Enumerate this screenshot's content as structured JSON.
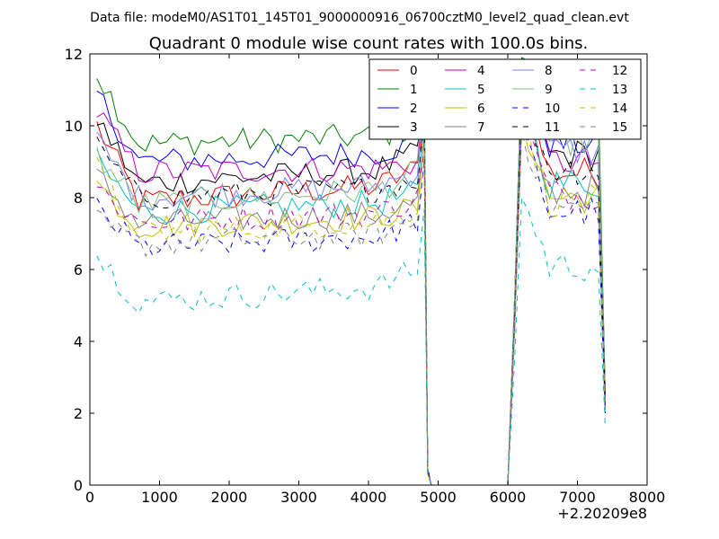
{
  "figure": {
    "suptitle": "Data file: modeM0/AS1T01_145T01_9000000916_06700cztM0_level2_quad_clean.evt"
  },
  "chart_data": {
    "type": "line",
    "title": "Quadrant 0 module wise count rates with 100.0s bins.",
    "xlabel": "",
    "ylabel": "",
    "x_offset_label": "+2.20209e8",
    "xlim": [
      0,
      8000
    ],
    "ylim": [
      0,
      12
    ],
    "xticks": [
      0,
      1000,
      2000,
      3000,
      4000,
      5000,
      6000,
      7000,
      8000
    ],
    "yticks": [
      0,
      2,
      4,
      6,
      8,
      10,
      12
    ],
    "grid": false,
    "legend_placement": "top-right",
    "legend_columns": 4,
    "x": {
      "segment1": {
        "start": 100,
        "step": 100,
        "count": 48
      },
      "gap": [
        4900,
        5000,
        5100,
        5200,
        5300,
        5400,
        5500,
        5600,
        5700,
        5800,
        5900,
        6000
      ],
      "segment2": {
        "start": 6100,
        "step": 100,
        "count": 14
      }
    },
    "series": [
      {
        "name": "0",
        "color": "#ff0000",
        "dashed": false,
        "seg1_start": 10.0,
        "seg1_mean": 7.9,
        "seg1_end": 8.9,
        "seg1_peak": 10.2,
        "seg2_peak": 11.0,
        "seg2_mean": 8.7,
        "seg2_last": 2.5
      },
      {
        "name": "1",
        "color": "#008000",
        "dashed": false,
        "seg1_start": 11.5,
        "seg1_mean": 9.5,
        "seg1_end": 10.0,
        "seg1_peak": 11.1,
        "seg2_peak": 11.9,
        "seg2_mean": 10.2,
        "seg2_last": 2.5
      },
      {
        "name": "2",
        "color": "#0000ff",
        "dashed": false,
        "seg1_start": 10.9,
        "seg1_mean": 9.0,
        "seg1_end": 9.6,
        "seg1_peak": 10.7,
        "seg2_peak": 11.7,
        "seg2_mean": 9.5,
        "seg2_last": 2.4
      },
      {
        "name": "3",
        "color": "#000000",
        "dashed": false,
        "seg1_start": 10.2,
        "seg1_mean": 8.4,
        "seg1_end": 9.3,
        "seg1_peak": 10.5,
        "seg2_peak": 11.2,
        "seg2_mean": 9.2,
        "seg2_last": 2.3
      },
      {
        "name": "4",
        "color": "#bf00bf",
        "dashed": false,
        "seg1_start": 10.4,
        "seg1_mean": 8.7,
        "seg1_end": 9.0,
        "seg1_peak": 10.4,
        "seg2_peak": 11.0,
        "seg2_mean": 9.0,
        "seg2_last": 2.4
      },
      {
        "name": "5",
        "color": "#00bfbf",
        "dashed": false,
        "seg1_start": 9.0,
        "seg1_mean": 7.6,
        "seg1_end": 8.2,
        "seg1_peak": 9.8,
        "seg2_peak": 10.6,
        "seg2_mean": 8.4,
        "seg2_last": 2.2
      },
      {
        "name": "6",
        "color": "#bfbf00",
        "dashed": false,
        "seg1_start": 8.4,
        "seg1_mean": 7.2,
        "seg1_end": 7.8,
        "seg1_peak": 9.4,
        "seg2_peak": 10.2,
        "seg2_mean": 8.0,
        "seg2_last": 2.1
      },
      {
        "name": "7",
        "color": "#808080",
        "dashed": false,
        "seg1_start": 8.6,
        "seg1_mean": 7.3,
        "seg1_end": 7.9,
        "seg1_peak": 9.5,
        "seg2_peak": 10.4,
        "seg2_mean": 8.2,
        "seg2_last": 2.2
      },
      {
        "name": "8",
        "color": "#7f7fff",
        "dashed": false,
        "seg1_start": 9.6,
        "seg1_mean": 8.0,
        "seg1_end": 8.8,
        "seg1_peak": 10.8,
        "seg2_peak": 11.7,
        "seg2_mean": 9.3,
        "seg2_last": 2.3
      },
      {
        "name": "9",
        "color": "#7fbf7f",
        "dashed": false,
        "seg1_start": 9.2,
        "seg1_mean": 7.8,
        "seg1_end": 8.8,
        "seg1_peak": 11.2,
        "seg2_peak": 11.8,
        "seg2_mean": 9.6,
        "seg2_last": 2.4
      },
      {
        "name": "10",
        "color": "#0000ff",
        "dashed": true,
        "seg1_start": 7.7,
        "seg1_mean": 6.6,
        "seg1_end": 7.4,
        "seg1_peak": 9.0,
        "seg2_peak": 9.9,
        "seg2_mean": 7.6,
        "seg2_last": 2.0
      },
      {
        "name": "11",
        "color": "#000000",
        "dashed": true,
        "seg1_start": 9.4,
        "seg1_mean": 8.0,
        "seg1_end": 8.6,
        "seg1_peak": 10.0,
        "seg2_peak": 10.8,
        "seg2_mean": 8.8,
        "seg2_last": 2.3
      },
      {
        "name": "12",
        "color": "#bf00bf",
        "dashed": true,
        "seg1_start": 8.3,
        "seg1_mean": 7.3,
        "seg1_end": 8.0,
        "seg1_peak": 9.5,
        "seg2_peak": 10.3,
        "seg2_mean": 8.1,
        "seg2_last": 2.2
      },
      {
        "name": "13",
        "color": "#00bfbf",
        "dashed": true,
        "seg1_start": 6.4,
        "seg1_mean": 5.1,
        "seg1_end": 6.1,
        "seg1_peak": 7.5,
        "seg2_peak": 8.0,
        "seg2_mean": 6.1,
        "seg2_last": 1.6
      },
      {
        "name": "14",
        "color": "#bfbf00",
        "dashed": true,
        "seg1_start": 8.8,
        "seg1_mean": 7.0,
        "seg1_end": 7.8,
        "seg1_peak": 9.3,
        "seg2_peak": 10.1,
        "seg2_mean": 7.9,
        "seg2_last": 2.1
      },
      {
        "name": "15",
        "color": "#808080",
        "dashed": true,
        "seg1_start": 7.3,
        "seg1_mean": 6.7,
        "seg1_end": 7.4,
        "seg1_peak": 9.1,
        "seg2_peak": 9.9,
        "seg2_mean": 7.7,
        "seg2_last": 2.0
      }
    ]
  }
}
